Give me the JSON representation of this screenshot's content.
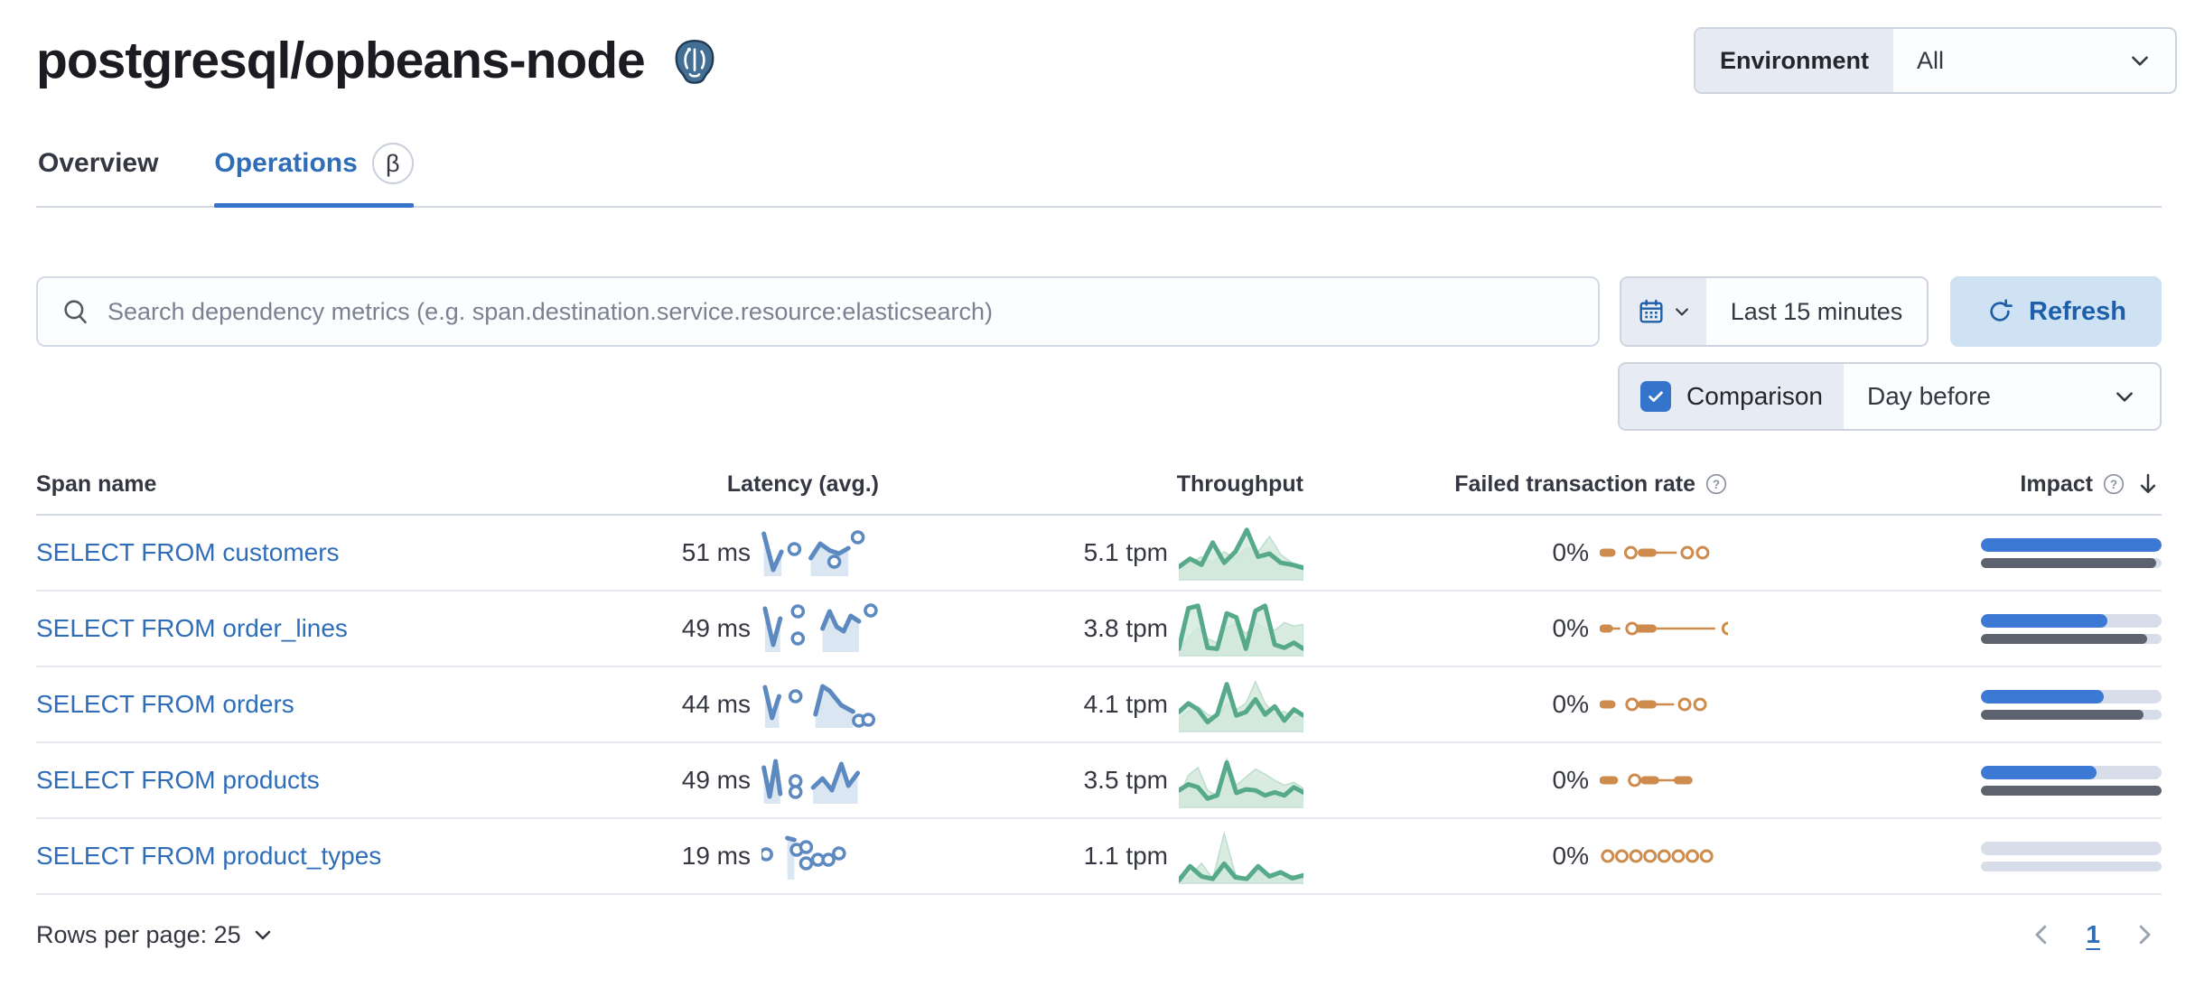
{
  "header": {
    "title": "postgresql/opbeans-node",
    "environment_label": "Environment",
    "environment_value": "All"
  },
  "tabs": [
    {
      "label": "Overview",
      "active": false
    },
    {
      "label": "Operations",
      "active": true,
      "beta": "β"
    }
  ],
  "toolbar": {
    "search_placeholder": "Search dependency metrics (e.g. span.destination.service.resource:elasticsearch)",
    "time_range": "Last 15 minutes",
    "refresh_label": "Refresh",
    "comparison_label": "Comparison",
    "comparison_value": "Day before"
  },
  "table": {
    "columns": [
      "Span name",
      "Latency (avg.)",
      "Throughput",
      "Failed transaction rate",
      "Impact"
    ],
    "rows": [
      {
        "name": "SELECT FROM customers",
        "latency": "51 ms",
        "throughput": "5.1 tpm",
        "failed_rate": "0%",
        "latency_spark": {
          "segments": [
            [
              [
                0.02,
                0.08
              ],
              [
                0.1,
                0.88
              ],
              [
                0.17,
                0.48
              ]
            ],
            [
              [
                0.42,
                0.62
              ],
              [
                0.5,
                0.3
              ],
              [
                0.58,
                0.45
              ],
              [
                0.66,
                0.52
              ],
              [
                0.74,
                0.4
              ]
            ]
          ],
          "markers": [
            [
              0.28,
              0.42
            ],
            [
              0.62,
              0.7
            ],
            [
              0.82,
              0.16
            ]
          ]
        },
        "throughput_spark": {
          "prev": [
            0.12,
            0.3,
            0.42,
            0.3,
            0.52,
            0.38,
            0.6,
            0.52,
            0.82,
            0.46,
            0.3,
            0.24
          ],
          "curr": [
            0.22,
            0.38,
            0.26,
            0.7,
            0.3,
            0.52,
            0.95,
            0.42,
            0.48,
            0.3,
            0.26,
            0.2
          ]
        },
        "failed_spark": {
          "dashes": [
            [
              0.0,
              0.12
            ],
            [
              0.3,
              0.44
            ]
          ],
          "lines": [
            [
              0.44,
              0.6
            ]
          ],
          "circles": [
            0.2,
            0.64,
            0.76
          ]
        },
        "impact": {
          "current": 1.0,
          "previous": 0.97
        }
      },
      {
        "name": "SELECT FROM order_lines",
        "latency": "49 ms",
        "throughput": "3.8 tpm",
        "failed_rate": "0%",
        "latency_spark": {
          "segments": [
            [
              [
                0.03,
                0.06
              ],
              [
                0.1,
                0.86
              ],
              [
                0.16,
                0.28
              ]
            ],
            [
              [
                0.52,
                0.5
              ],
              [
                0.58,
                0.12
              ],
              [
                0.64,
                0.46
              ],
              [
                0.7,
                0.56
              ],
              [
                0.76,
                0.22
              ],
              [
                0.83,
                0.34
              ]
            ]
          ],
          "markers": [
            [
              0.31,
              0.12
            ],
            [
              0.31,
              0.72
            ],
            [
              0.93,
              0.1
            ]
          ]
        },
        "throughput_spark": {
          "prev": [
            0.05,
            0.32,
            0.5,
            0.3,
            0.22,
            0.52,
            0.6,
            0.4,
            0.62,
            0.5,
            0.46,
            0.62,
            0.55,
            0.58
          ],
          "curr": [
            0.1,
            0.9,
            0.95,
            0.12,
            0.1,
            0.8,
            0.72,
            0.1,
            0.85,
            0.95,
            0.18,
            0.12,
            0.22,
            0.1
          ]
        },
        "failed_spark": {
          "dashes": [
            [
              0.0,
              0.1
            ],
            [
              0.28,
              0.44
            ]
          ],
          "lines": [
            [
              0.1,
              0.16
            ],
            [
              0.44,
              0.9
            ]
          ],
          "circles": [
            0.21,
            0.96
          ]
        },
        "impact": {
          "current": 0.7,
          "previous": 0.92
        }
      },
      {
        "name": "SELECT FROM orders",
        "latency": "44 ms",
        "throughput": "4.1 tpm",
        "failed_rate": "0%",
        "latency_spark": {
          "segments": [
            [
              [
                0.03,
                0.12
              ],
              [
                0.09,
                0.8
              ],
              [
                0.15,
                0.32
              ]
            ],
            [
              [
                0.46,
                0.72
              ],
              [
                0.52,
                0.1
              ],
              [
                0.58,
                0.2
              ],
              [
                0.68,
                0.52
              ],
              [
                0.78,
                0.66
              ]
            ]
          ],
          "markers": [
            [
              0.29,
              0.32
            ],
            [
              0.83,
              0.86
            ],
            [
              0.91,
              0.84
            ]
          ]
        },
        "throughput_spark": {
          "prev": [
            0.2,
            0.36,
            0.46,
            0.3,
            0.24,
            0.52,
            0.4,
            0.52,
            0.95,
            0.52,
            0.3,
            0.36,
            0.24,
            0.3
          ],
          "curr": [
            0.35,
            0.52,
            0.4,
            0.15,
            0.3,
            0.9,
            0.28,
            0.35,
            0.6,
            0.3,
            0.46,
            0.18,
            0.4,
            0.28
          ]
        },
        "failed_spark": {
          "dashes": [
            [
              0.0,
              0.12
            ],
            [
              0.3,
              0.44
            ]
          ],
          "lines": [
            [
              0.44,
              0.58
            ]
          ],
          "circles": [
            0.21,
            0.62,
            0.74
          ]
        },
        "impact": {
          "current": 0.68,
          "previous": 0.9
        }
      },
      {
        "name": "SELECT FROM products",
        "latency": "49 ms",
        "throughput": "3.5 tpm",
        "failed_rate": "0%",
        "latency_spark": {
          "segments": [
            [
              [
                0.02,
                0.22
              ],
              [
                0.07,
                0.86
              ],
              [
                0.12,
                0.08
              ],
              [
                0.16,
                0.8
              ]
            ],
            [
              [
                0.44,
                0.66
              ],
              [
                0.52,
                0.46
              ],
              [
                0.6,
                0.72
              ],
              [
                0.68,
                0.14
              ],
              [
                0.74,
                0.62
              ],
              [
                0.82,
                0.34
              ]
            ]
          ],
          "markers": [
            [
              0.29,
              0.52
            ],
            [
              0.29,
              0.76
            ]
          ]
        },
        "throughput_spark": {
          "prev": [
            0.15,
            0.6,
            0.75,
            0.3,
            0.2,
            0.92,
            0.4,
            0.56,
            0.72,
            0.62,
            0.5,
            0.4,
            0.46,
            0.34
          ],
          "curr": [
            0.3,
            0.42,
            0.36,
            0.14,
            0.2,
            0.85,
            0.25,
            0.32,
            0.3,
            0.2,
            0.26,
            0.2,
            0.36,
            0.26
          ]
        },
        "failed_spark": {
          "dashes": [
            [
              0.0,
              0.14
            ],
            [
              0.32,
              0.46
            ],
            [
              0.58,
              0.72
            ]
          ],
          "lines": [
            [
              0.46,
              0.58
            ]
          ],
          "circles": [
            0.23
          ]
        },
        "impact": {
          "current": 0.64,
          "previous": 1.0
        }
      },
      {
        "name": "SELECT FROM product_types",
        "latency": "19 ms",
        "throughput": "1.1 tpm",
        "failed_rate": "0%",
        "latency_spark": {
          "segments": [
            [
              [
                0.22,
                0.1
              ],
              [
                0.28,
                0.14
              ]
            ]
          ],
          "markers": [
            [
              0.04,
              0.46
            ],
            [
              0.3,
              0.36
            ],
            [
              0.38,
              0.3
            ],
            [
              0.38,
              0.66
            ],
            [
              0.48,
              0.58
            ],
            [
              0.57,
              0.58
            ],
            [
              0.66,
              0.44
            ]
          ]
        },
        "throughput_spark": {
          "prev": [
            0.02,
            0.1,
            0.36,
            0.05,
            0.95,
            0.14,
            0.05,
            0.2,
            0.1,
            0.05,
            0.12,
            0.05
          ],
          "curr": [
            0.02,
            0.3,
            0.1,
            0.05,
            0.35,
            0.08,
            0.05,
            0.3,
            0.1,
            0.18,
            0.06,
            0.12
          ]
        },
        "failed_spark": {
          "dashes": [],
          "lines": [],
          "circles": [
            0.02,
            0.13,
            0.24,
            0.35,
            0.46,
            0.57,
            0.68,
            0.79
          ]
        },
        "impact": {
          "current": 0.0,
          "previous": 0.0
        }
      }
    ]
  },
  "footer": {
    "rows_per_page": "Rows per page: 25",
    "page": "1"
  },
  "colors": {
    "link_blue": "#2f6db8",
    "latency_line": "#5c89c0",
    "latency_fill": "#dbe6f3",
    "throughput_line": "#57a98c",
    "throughput_fill": "#cfe8db",
    "throughput_prev_fill": "#d9ecdf",
    "throughput_prev_line": "#bcded0",
    "failed_orange": "#cd8b4e",
    "impact_blue": "#3b79d4",
    "impact_gray": "#5d636e",
    "impact_track": "#d7dee9"
  }
}
